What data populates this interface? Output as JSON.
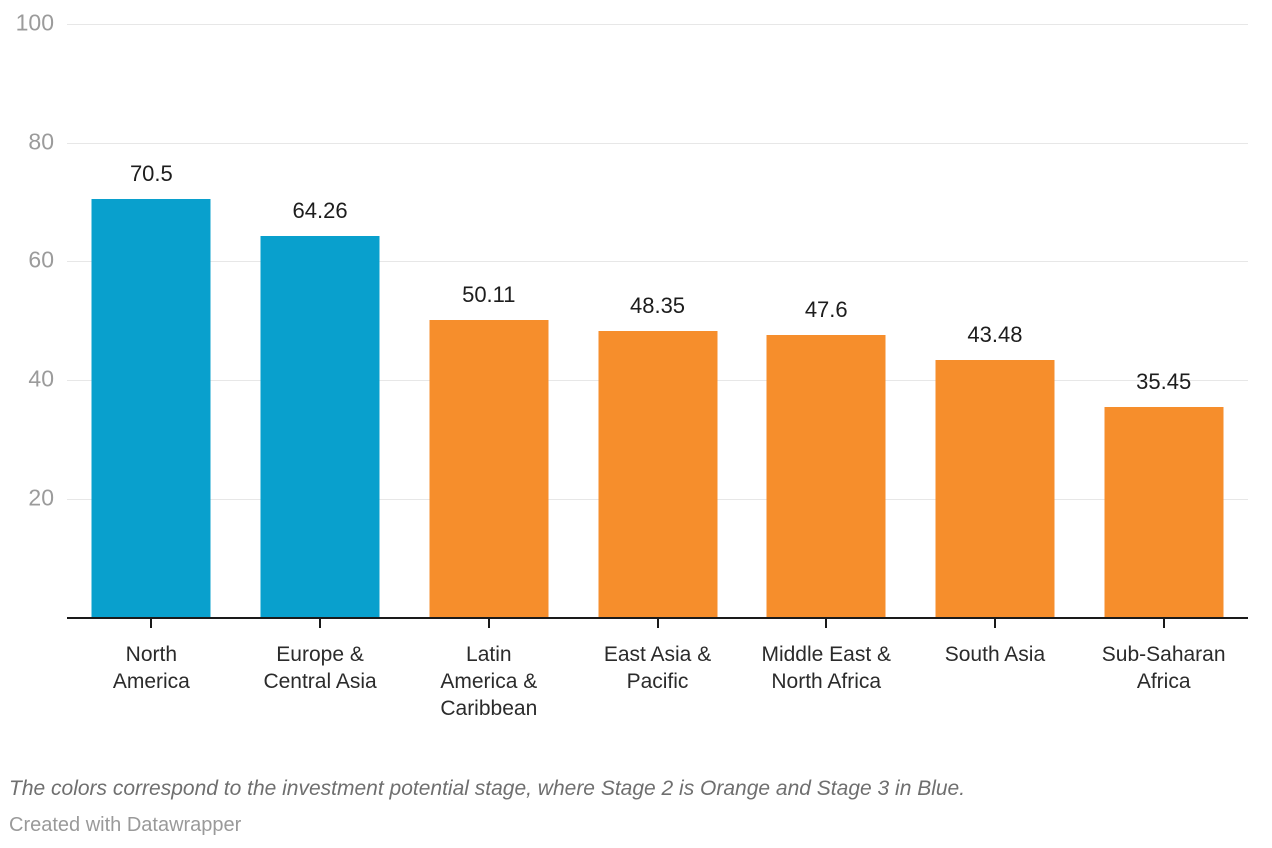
{
  "chart_data": {
    "type": "bar",
    "title": "",
    "xlabel": "",
    "ylabel": "",
    "categories": [
      "North America",
      "Europe & Central Asia",
      "Latin America & Caribbean",
      "East Asia & Pacific",
      "Middle East & North Africa",
      "South Asia",
      "Sub-Saharan Africa"
    ],
    "category_lines": [
      [
        "North",
        "America"
      ],
      [
        "Europe &",
        "Central Asia"
      ],
      [
        "Latin",
        "America &",
        "Caribbean"
      ],
      [
        "East Asia &",
        "Pacific"
      ],
      [
        "Middle East &",
        "North Africa"
      ],
      [
        "South Asia"
      ],
      [
        "Sub-Saharan",
        "Africa"
      ]
    ],
    "values": [
      70.5,
      64.26,
      50.11,
      48.35,
      47.6,
      43.48,
      35.45
    ],
    "value_labels": [
      "70.5",
      "64.26",
      "50.11",
      "48.35",
      "47.6",
      "43.48",
      "35.45"
    ],
    "bar_colors": [
      "#09a0cd",
      "#09a0cd",
      "#f68e2c",
      "#f68e2c",
      "#f68e2c",
      "#f68e2c",
      "#f68e2c"
    ],
    "y_ticks": [
      20,
      40,
      60,
      80,
      100
    ],
    "ylim": [
      0,
      100
    ],
    "grid": true,
    "legend_position": "none"
  },
  "colors": {
    "stage2_orange": "#f68e2c",
    "stage3_blue": "#09a0cd",
    "gridline": "#e7e7e7",
    "axis_line": "#1a1a1a",
    "y_tick_label": "#9b9b9b",
    "value_label": "#1d1d1d",
    "category_label": "#2b2b2b",
    "note_text": "#6f6f6f",
    "attribution_text": "#9a9a9a"
  },
  "footer": {
    "note": "The colors correspond to the investment potential stage, where Stage 2 is Orange and Stage 3 in Blue.",
    "attribution": "Created with Datawrapper"
  }
}
